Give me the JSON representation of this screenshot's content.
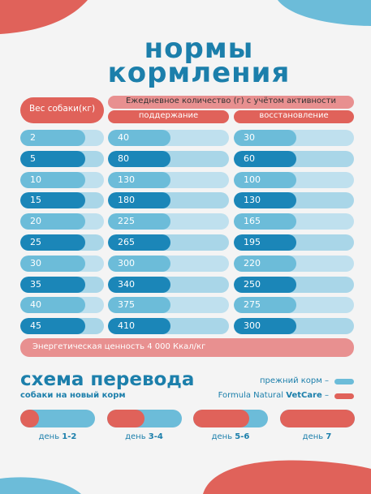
{
  "header": {
    "title": [
      "нормы",
      "кормления"
    ]
  },
  "table": {
    "header": {
      "weight": "Вес собаки(кг)",
      "daily": "Ежедневное количество (г) с учётом активности",
      "maintenance": "поддержание",
      "recovery": "восстановление"
    },
    "rows": [
      [
        "2",
        "40",
        "30"
      ],
      [
        "5",
        "80",
        "60"
      ],
      [
        "10",
        "130",
        "100"
      ],
      [
        "15",
        "180",
        "130"
      ],
      [
        "20",
        "225",
        "165"
      ],
      [
        "25",
        "265",
        "195"
      ],
      [
        "30",
        "300",
        "220"
      ],
      [
        "35",
        "340",
        "250"
      ],
      [
        "40",
        "375",
        "275"
      ],
      [
        "45",
        "410",
        "300"
      ]
    ],
    "footer": "Энергетическая ценность 4 000 Ккал/кг"
  },
  "transition": {
    "title": "схема перевода",
    "subtitle": "собаки на новый корм",
    "legend": [
      "прежний корм –",
      {
        "text": "Formula Natural ",
        "bold": "VetCare",
        "dash": " –"
      }
    ],
    "days": [
      {
        "label": "день ",
        "range": "1-2"
      },
      {
        "label": "день ",
        "range": "3-4"
      },
      {
        "label": "день ",
        "range": "5-6"
      },
      {
        "label": "день ",
        "range": "7"
      }
    ]
  }
}
